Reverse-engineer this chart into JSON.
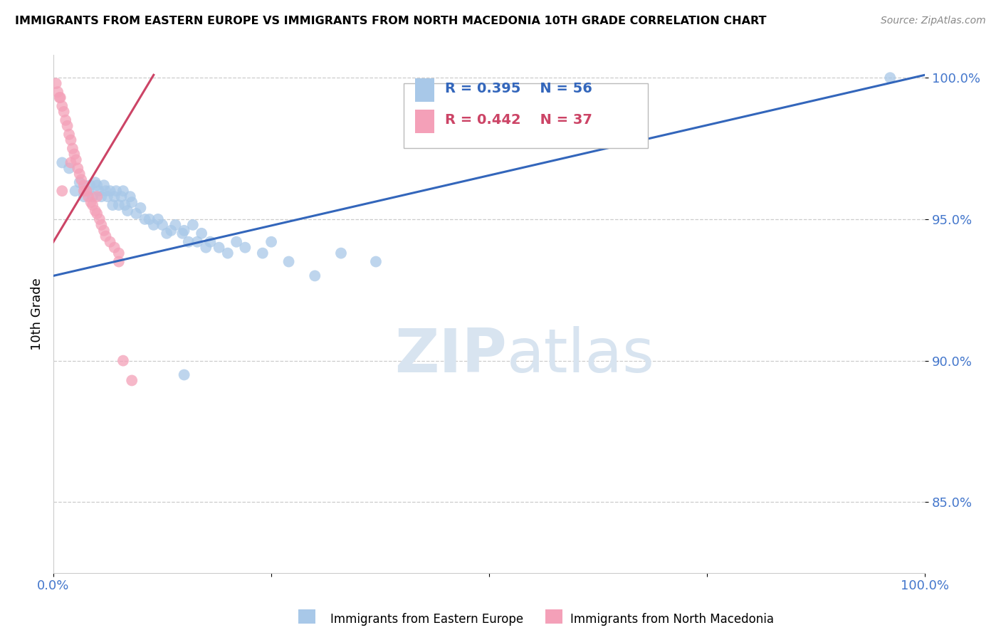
{
  "title": "IMMIGRANTS FROM EASTERN EUROPE VS IMMIGRANTS FROM NORTH MACEDONIA 10TH GRADE CORRELATION CHART",
  "source": "Source: ZipAtlas.com",
  "ylabel": "10th Grade",
  "xlim": [
    0.0,
    1.0
  ],
  "ylim": [
    0.825,
    1.008
  ],
  "ytick_positions": [
    0.85,
    0.9,
    0.95,
    1.0
  ],
  "ytick_labels": [
    "85.0%",
    "90.0%",
    "95.0%",
    "100.0%"
  ],
  "blue_color": "#a8c8e8",
  "pink_color": "#f4a0b8",
  "blue_line_color": "#3366bb",
  "pink_line_color": "#cc4466",
  "R_blue": 0.395,
  "N_blue": 56,
  "R_pink": 0.442,
  "N_pink": 37,
  "blue_scatter_x": [
    0.01,
    0.018,
    0.025,
    0.03,
    0.035,
    0.04,
    0.042,
    0.045,
    0.048,
    0.05,
    0.052,
    0.055,
    0.058,
    0.06,
    0.062,
    0.065,
    0.068,
    0.07,
    0.072,
    0.075,
    0.078,
    0.08,
    0.082,
    0.085,
    0.088,
    0.09,
    0.095,
    0.1,
    0.105,
    0.11,
    0.115,
    0.12,
    0.125,
    0.13,
    0.135,
    0.14,
    0.148,
    0.15,
    0.155,
    0.16,
    0.165,
    0.17,
    0.175,
    0.18,
    0.19,
    0.2,
    0.21,
    0.22,
    0.24,
    0.25,
    0.27,
    0.3,
    0.33,
    0.37,
    0.15,
    0.96
  ],
  "blue_scatter_y": [
    0.97,
    0.968,
    0.96,
    0.963,
    0.958,
    0.96,
    0.962,
    0.958,
    0.963,
    0.962,
    0.96,
    0.958,
    0.962,
    0.96,
    0.958,
    0.96,
    0.955,
    0.958,
    0.96,
    0.955,
    0.958,
    0.96,
    0.955,
    0.953,
    0.958,
    0.956,
    0.952,
    0.954,
    0.95,
    0.95,
    0.948,
    0.95,
    0.948,
    0.945,
    0.946,
    0.948,
    0.945,
    0.946,
    0.942,
    0.948,
    0.942,
    0.945,
    0.94,
    0.942,
    0.94,
    0.938,
    0.942,
    0.94,
    0.938,
    0.942,
    0.935,
    0.93,
    0.938,
    0.935,
    0.895,
    1.0
  ],
  "pink_scatter_x": [
    0.003,
    0.005,
    0.007,
    0.008,
    0.01,
    0.012,
    0.014,
    0.016,
    0.018,
    0.02,
    0.022,
    0.024,
    0.026,
    0.028,
    0.03,
    0.032,
    0.035,
    0.038,
    0.04,
    0.043,
    0.045,
    0.048,
    0.05,
    0.053,
    0.055,
    0.058,
    0.06,
    0.065,
    0.07,
    0.075,
    0.08,
    0.09,
    0.01,
    0.05,
    0.075,
    0.02,
    0.035
  ],
  "pink_scatter_y": [
    0.998,
    0.995,
    0.993,
    0.993,
    0.99,
    0.988,
    0.985,
    0.983,
    0.98,
    0.978,
    0.975,
    0.973,
    0.971,
    0.968,
    0.966,
    0.964,
    0.962,
    0.96,
    0.958,
    0.956,
    0.955,
    0.953,
    0.952,
    0.95,
    0.948,
    0.946,
    0.944,
    0.942,
    0.94,
    0.938,
    0.9,
    0.893,
    0.96,
    0.958,
    0.935,
    0.97,
    0.96
  ],
  "blue_trend_start_x": 0.0,
  "blue_trend_start_y": 0.93,
  "blue_trend_end_x": 1.0,
  "blue_trend_end_y": 1.001,
  "pink_trend_start_x": 0.0,
  "pink_trend_start_y": 0.942,
  "pink_trend_end_x": 0.115,
  "pink_trend_end_y": 1.001,
  "watermark_zip": "ZIP",
  "watermark_atlas": "atlas",
  "watermark_color": "#d8e4f0",
  "background_color": "#ffffff",
  "grid_color": "#cccccc",
  "tick_color": "#4477cc"
}
